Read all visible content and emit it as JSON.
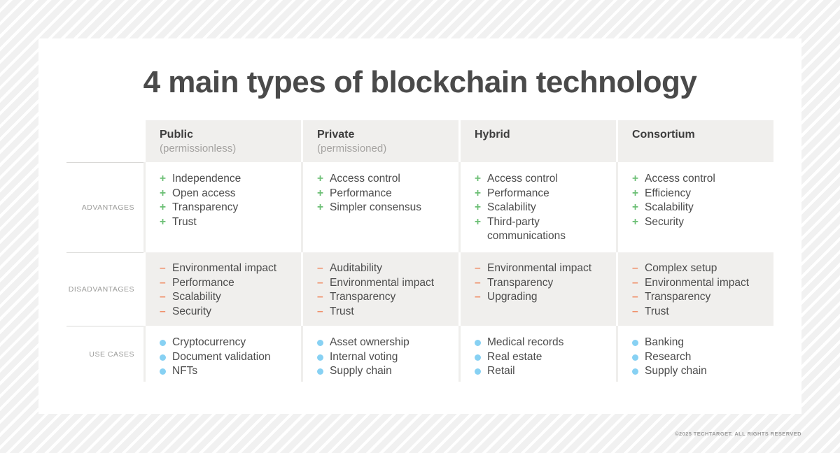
{
  "page": {
    "footer": "©2025 TECHTARGET. ALL RIGHTS RESERVED"
  },
  "chart_data": {
    "type": "table",
    "title": "4 main types of blockchain technology",
    "row_labels": [
      "ADVANTAGES",
      "DISADVANTAGES",
      "USE CASES"
    ],
    "bullets": {
      "plus": "+",
      "minus": "–"
    },
    "columns": [
      {
        "name": "Public",
        "subtitle": "(permissionless)",
        "advantages": [
          "Independence",
          "Open access",
          "Transparency",
          "Trust"
        ],
        "disadvantages": [
          "Environmental impact",
          "Performance",
          "Scalability",
          "Security"
        ],
        "use_cases": [
          "Cryptocurrency",
          "Document validation",
          "NFTs"
        ]
      },
      {
        "name": "Private",
        "subtitle": "(permissioned)",
        "advantages": [
          "Access control",
          "Performance",
          "Simpler consensus"
        ],
        "disadvantages": [
          "Auditability",
          "Environmental impact",
          "Transparency",
          "Trust"
        ],
        "use_cases": [
          "Asset ownership",
          "Internal voting",
          "Supply chain"
        ]
      },
      {
        "name": "Hybrid",
        "subtitle": "",
        "advantages": [
          "Access control",
          "Performance",
          "Scalability",
          "Third-party communications"
        ],
        "disadvantages": [
          "Environmental impact",
          "Transparency",
          "Upgrading"
        ],
        "use_cases": [
          "Medical records",
          "Real estate",
          "Retail"
        ]
      },
      {
        "name": "Consortium",
        "subtitle": "",
        "advantages": [
          "Access control",
          "Efficiency",
          "Scalability",
          "Security"
        ],
        "disadvantages": [
          "Complex setup",
          "Environmental impact",
          "Transparency",
          "Trust"
        ],
        "use_cases": [
          "Banking",
          "Research",
          "Supply chain"
        ]
      }
    ]
  },
  "colors": {
    "advantage_green": "#6cbf75",
    "disadvantage_orange": "#f0916b",
    "use_case_blue": "#87d1f3",
    "header_row_bg": "#f0efed",
    "body_text": "#4c4c4c",
    "label_gray": "#9b9b99",
    "card_bg": "#ffffff"
  }
}
